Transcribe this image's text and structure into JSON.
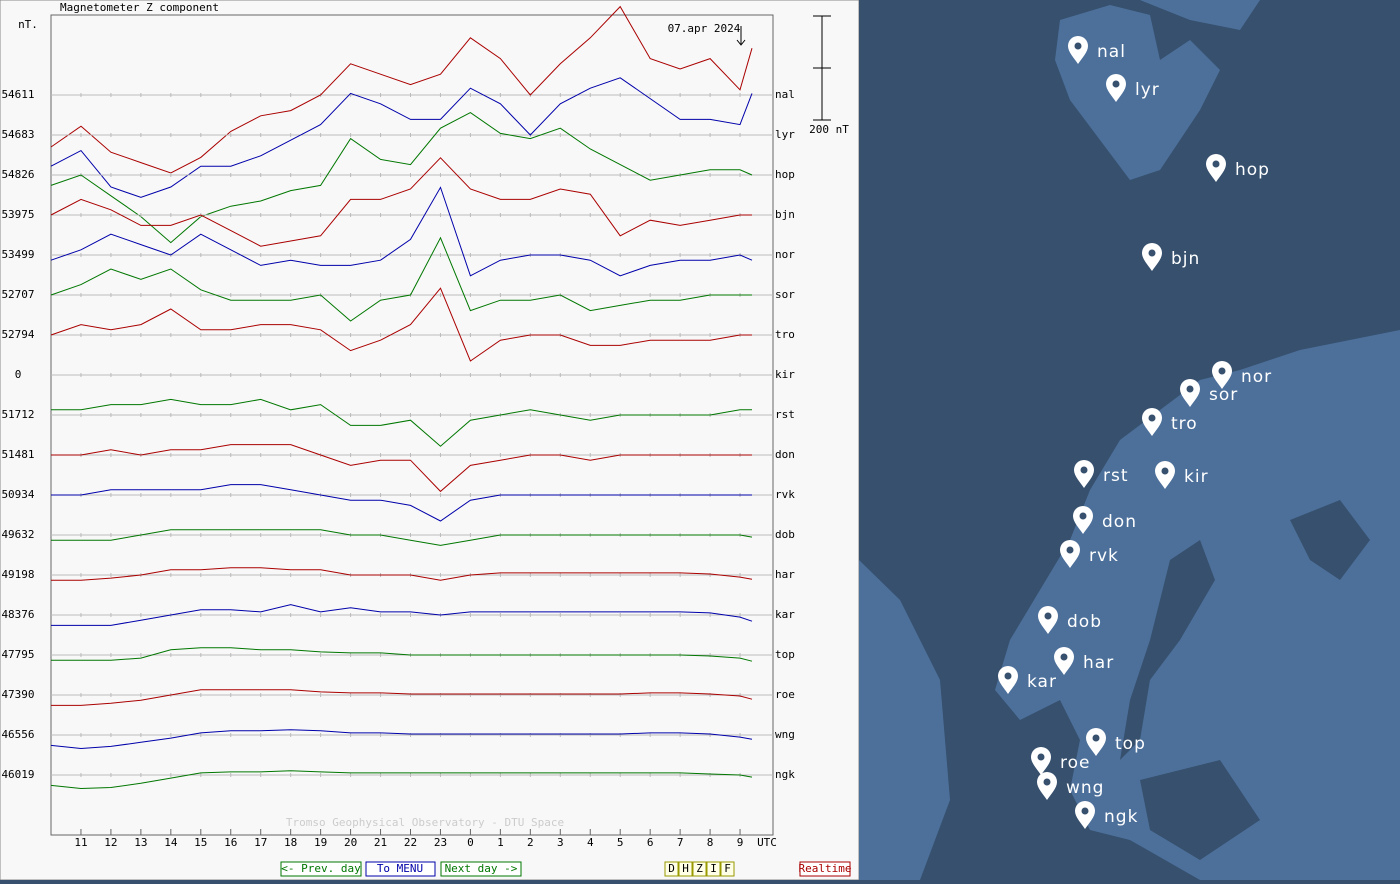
{
  "chart_data": {
    "type": "line",
    "title": "Magnetometer Z component",
    "y_unit": "nT.",
    "date": "07.apr 2024",
    "scale_bar": {
      "value": 200,
      "label": "200 nT"
    },
    "x_unit": "UTC",
    "credit": "Tromso Geophysical Observatory - DTU Space",
    "xlim": [
      10,
      34.1
    ],
    "xticks": [
      11,
      12,
      13,
      14,
      15,
      16,
      17,
      18,
      19,
      20,
      21,
      22,
      23,
      {
        "value": 24,
        "label": "0"
      },
      {
        "value": 25,
        "label": "1"
      },
      {
        "value": 26,
        "label": "2"
      },
      {
        "value": 27,
        "label": "3"
      },
      {
        "value": 28,
        "label": "4"
      },
      {
        "value": 29,
        "label": "5"
      },
      {
        "value": 30,
        "label": "6"
      },
      {
        "value": 31,
        "label": "7"
      },
      {
        "value": 32,
        "label": "8"
      },
      {
        "value": 33,
        "label": "9"
      }
    ],
    "x": [
      10,
      11,
      12,
      13,
      14,
      15,
      16,
      17,
      18,
      19,
      20,
      21,
      22,
      23,
      24,
      25,
      26,
      27,
      28,
      29,
      30,
      31,
      32,
      33,
      33.4
    ],
    "series": [
      {
        "name": "nal",
        "baseline": 54611,
        "color": "#aa0000",
        "values": [
          -100,
          -60,
          -110,
          -130,
          -150,
          -120,
          -70,
          -40,
          -30,
          0,
          60,
          40,
          20,
          40,
          110,
          70,
          0,
          60,
          110,
          170,
          70,
          50,
          70,
          10,
          90
        ]
      },
      {
        "name": "lyr",
        "baseline": 54683,
        "color": "#0000aa",
        "values": [
          -60,
          -30,
          -100,
          -120,
          -100,
          -60,
          -60,
          -40,
          -10,
          20,
          80,
          60,
          30,
          30,
          90,
          60,
          0,
          60,
          90,
          110,
          70,
          30,
          30,
          20,
          80
        ]
      },
      {
        "name": "hop",
        "baseline": 54826,
        "color": "#007700",
        "values": [
          -20,
          0,
          -40,
          -80,
          -130,
          -80,
          -60,
          -50,
          -30,
          -20,
          70,
          30,
          20,
          90,
          120,
          80,
          70,
          90,
          50,
          20,
          -10,
          0,
          10,
          10,
          0
        ]
      },
      {
        "name": "bjn",
        "baseline": 53975,
        "color": "#aa0000",
        "values": [
          0,
          30,
          10,
          -20,
          -20,
          0,
          -30,
          -60,
          -50,
          -40,
          30,
          30,
          50,
          110,
          50,
          30,
          30,
          50,
          40,
          -40,
          -10,
          -20,
          -10,
          0,
          0
        ]
      },
      {
        "name": "nor",
        "baseline": 53499,
        "color": "#0000aa",
        "values": [
          -10,
          10,
          40,
          20,
          0,
          40,
          10,
          -20,
          -10,
          -20,
          -20,
          -10,
          30,
          130,
          -40,
          -10,
          0,
          0,
          -10,
          -40,
          -20,
          -10,
          -10,
          0,
          -10
        ]
      },
      {
        "name": "sor",
        "baseline": 52707,
        "color": "#007700",
        "values": [
          0,
          20,
          50,
          30,
          50,
          10,
          -10,
          -10,
          -10,
          0,
          -50,
          -10,
          0,
          110,
          -30,
          -10,
          -10,
          0,
          -30,
          -20,
          -10,
          -10,
          0,
          0,
          0
        ]
      },
      {
        "name": "tro",
        "baseline": 52794,
        "color": "#aa0000",
        "values": [
          0,
          20,
          10,
          20,
          50,
          10,
          10,
          20,
          20,
          10,
          -30,
          -10,
          20,
          90,
          -50,
          -10,
          0,
          0,
          -20,
          -20,
          -10,
          -10,
          -10,
          0,
          0
        ]
      },
      {
        "name": "kir",
        "baseline": 0,
        "values": [
          null,
          null,
          null,
          null,
          null,
          null,
          null,
          null,
          null,
          null,
          null,
          null,
          null,
          null,
          null,
          null,
          null,
          null,
          null,
          null,
          null,
          null,
          null,
          null,
          null
        ]
      },
      {
        "name": "rst",
        "baseline": 51712,
        "color": "#007700",
        "values": [
          10,
          10,
          20,
          20,
          30,
          20,
          20,
          30,
          10,
          20,
          -20,
          -20,
          -10,
          -60,
          -10,
          0,
          10,
          0,
          -10,
          0,
          0,
          0,
          0,
          10,
          10
        ]
      },
      {
        "name": "don",
        "baseline": 51481,
        "color": "#aa0000",
        "values": [
          0,
          0,
          10,
          0,
          10,
          10,
          20,
          20,
          20,
          0,
          -20,
          -10,
          -10,
          -70,
          -20,
          -10,
          0,
          0,
          -10,
          0,
          0,
          0,
          0,
          0,
          0
        ]
      },
      {
        "name": "rvk",
        "baseline": 50934,
        "color": "#0000aa",
        "values": [
          0,
          0,
          10,
          10,
          10,
          10,
          20,
          20,
          10,
          0,
          -10,
          -10,
          -20,
          -50,
          -10,
          0,
          0,
          0,
          0,
          0,
          0,
          0,
          0,
          0,
          0
        ]
      },
      {
        "name": "dob",
        "baseline": 49632,
        "color": "#007700",
        "values": [
          -10,
          -10,
          -10,
          0,
          10,
          10,
          10,
          10,
          10,
          10,
          0,
          0,
          -10,
          -20,
          -10,
          0,
          0,
          0,
          0,
          0,
          0,
          0,
          0,
          0,
          -4
        ]
      },
      {
        "name": "har",
        "baseline": 49198,
        "color": "#aa0000",
        "values": [
          -10,
          -10,
          -6,
          0,
          10,
          10,
          14,
          14,
          10,
          10,
          0,
          0,
          0,
          -10,
          0,
          4,
          4,
          4,
          4,
          4,
          4,
          4,
          2,
          -4,
          -8
        ]
      },
      {
        "name": "kar",
        "baseline": 48376,
        "color": "#0000aa",
        "values": [
          -20,
          -20,
          -20,
          -10,
          0,
          10,
          10,
          6,
          20,
          6,
          14,
          6,
          6,
          0,
          6,
          6,
          6,
          6,
          6,
          6,
          6,
          6,
          4,
          -4,
          -12
        ]
      },
      {
        "name": "top",
        "baseline": 47795,
        "color": "#007700",
        "values": [
          -10,
          -10,
          -10,
          -6,
          10,
          14,
          14,
          10,
          10,
          6,
          4,
          4,
          0,
          0,
          0,
          0,
          0,
          0,
          0,
          0,
          0,
          0,
          -2,
          -6,
          -12
        ]
      },
      {
        "name": "roe",
        "baseline": 47390,
        "color": "#aa0000",
        "values": [
          -20,
          -20,
          -16,
          -10,
          0,
          10,
          10,
          10,
          10,
          6,
          4,
          4,
          2,
          2,
          2,
          2,
          2,
          2,
          2,
          2,
          4,
          4,
          2,
          -2,
          -8
        ]
      },
      {
        "name": "wng",
        "baseline": 46556,
        "color": "#0000aa",
        "values": [
          -20,
          -26,
          -22,
          -14,
          -6,
          4,
          8,
          8,
          10,
          8,
          4,
          4,
          2,
          2,
          2,
          2,
          2,
          2,
          2,
          2,
          4,
          4,
          2,
          -4,
          -8
        ]
      },
      {
        "name": "ngk",
        "baseline": 46019,
        "color": "#007700",
        "values": [
          -20,
          -26,
          -24,
          -16,
          -6,
          4,
          6,
          6,
          8,
          6,
          4,
          4,
          4,
          4,
          4,
          4,
          4,
          4,
          4,
          4,
          4,
          4,
          2,
          0,
          -4
        ]
      }
    ]
  },
  "navigation": {
    "prev": "<- Prev. day",
    "menu": "To MENU",
    "next": "Next day ->",
    "components": [
      "D",
      "H",
      "Z",
      "I",
      "F"
    ],
    "realtime": "Realtime"
  }
}
